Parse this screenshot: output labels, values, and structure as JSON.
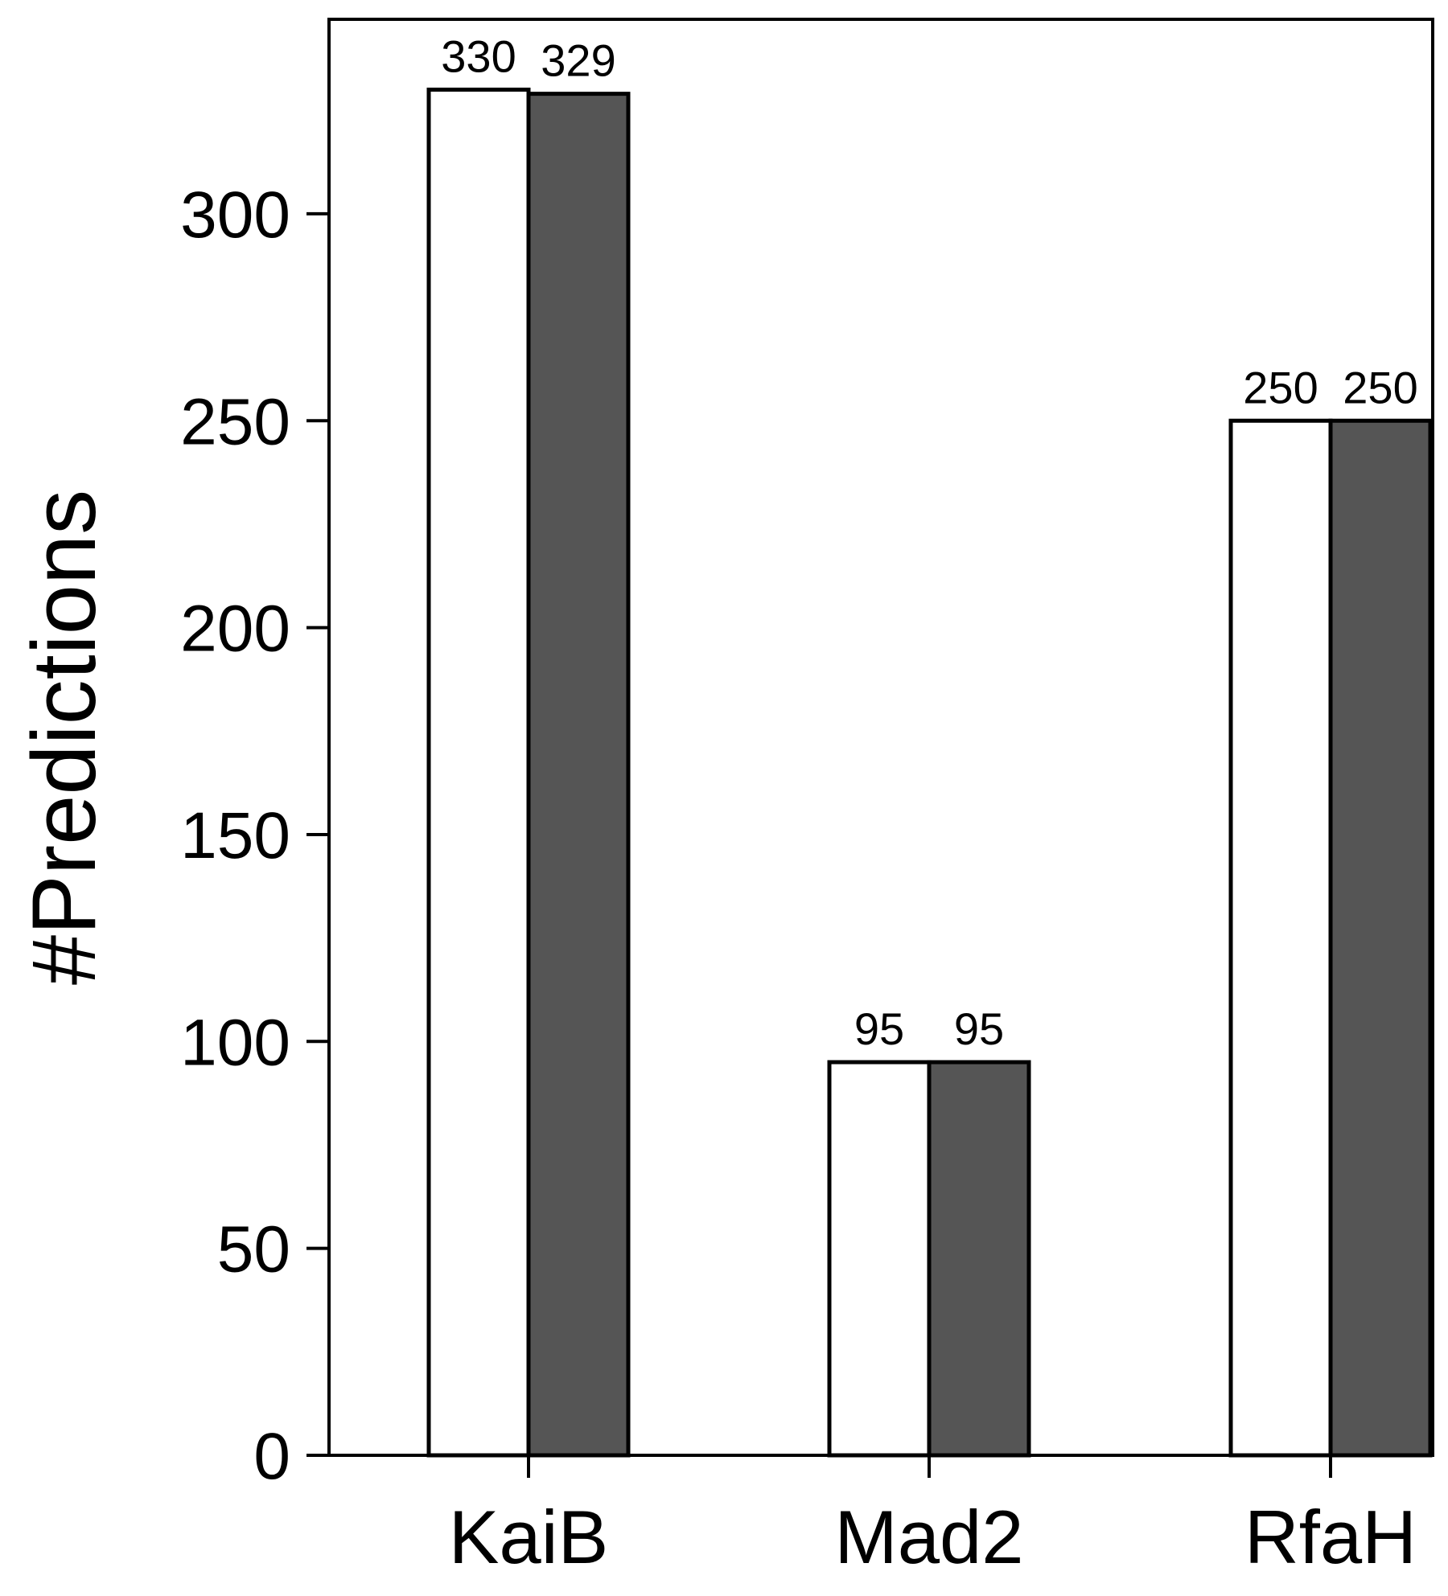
{
  "chart_data": {
    "type": "bar",
    "title": "",
    "xlabel": "",
    "ylabel": "#Predictions",
    "categories": [
      "KaiB",
      "Mad2",
      "RfaH"
    ],
    "series": [
      {
        "values": [
          330,
          95,
          250
        ],
        "color": "#ffffff"
      },
      {
        "values": [
          329,
          95,
          250
        ],
        "color": "#555555"
      }
    ],
    "ylim": [
      0,
      347
    ],
    "yticks": [
      0,
      50,
      100,
      150,
      200,
      250,
      300
    ],
    "grid": false,
    "legend": "none",
    "data_labels": true,
    "bar_edge_color": "#000000"
  }
}
